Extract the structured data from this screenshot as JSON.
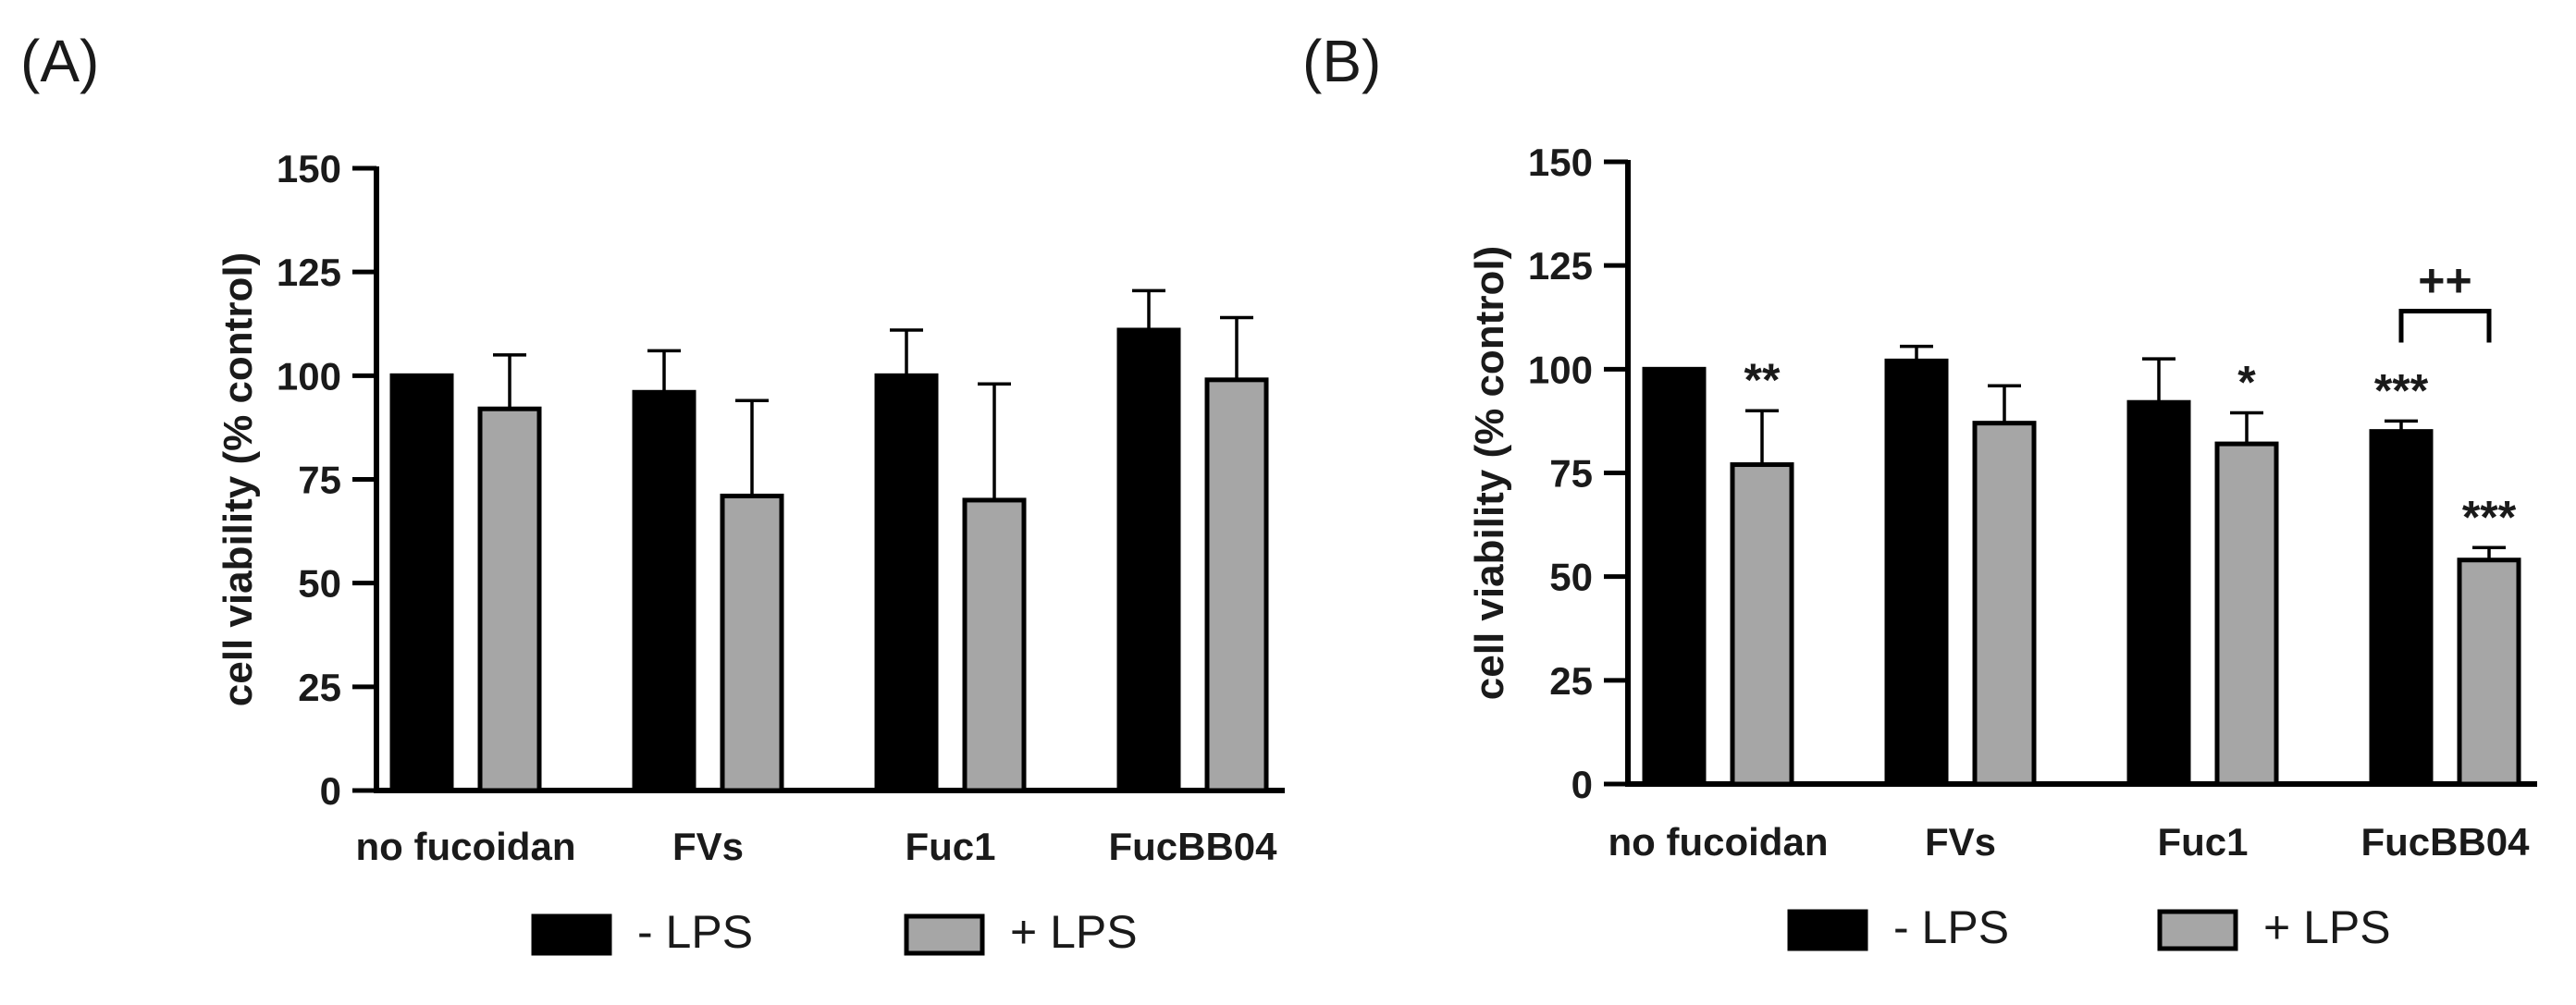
{
  "colors": {
    "minus_lps": "#000000",
    "plus_lps": "#a6a6a6",
    "axis": "#000000"
  },
  "chart_data": [
    {
      "panel_label": "(A)",
      "type": "bar",
      "categories": [
        "no fucoidan",
        "FVs",
        "Fuc1",
        "FucBB04"
      ],
      "ylabel": "cell viability (% control)",
      "xlabel": "",
      "ylim": [
        0,
        150
      ],
      "yticks": [
        0,
        25,
        50,
        75,
        100,
        125,
        150
      ],
      "ytick_labels": [
        "0",
        "25",
        "50",
        "75",
        "100",
        "125",
        "150"
      ],
      "grid": false,
      "legend_position": "bottom",
      "series": [
        {
          "name": "- LPS",
          "color": "#000000",
          "values": [
            100,
            96,
            100,
            111
          ],
          "error": [
            0,
            10,
            11,
            9.5
          ],
          "annotations": [
            "",
            "",
            "",
            ""
          ]
        },
        {
          "name": "+ LPS",
          "color": "#a6a6a6",
          "values": [
            92,
            71,
            70,
            99
          ],
          "error": [
            13,
            23,
            28,
            15
          ],
          "annotations": [
            "",
            "",
            "",
            ""
          ]
        }
      ],
      "brackets": []
    },
    {
      "panel_label": "(B)",
      "type": "bar",
      "categories": [
        "no fucoidan",
        "FVs",
        "Fuc1",
        "FucBB04"
      ],
      "ylabel": "cell viability (% control)",
      "xlabel": "",
      "ylim": [
        0,
        150
      ],
      "yticks": [
        0,
        25,
        50,
        75,
        100,
        125,
        150
      ],
      "ytick_labels": [
        "0",
        "25",
        "50",
        "75",
        "100",
        "125",
        "150"
      ],
      "grid": false,
      "legend_position": "bottom",
      "series": [
        {
          "name": "- LPS",
          "color": "#000000",
          "values": [
            100,
            102,
            92,
            85
          ],
          "error": [
            0,
            3.5,
            10.5,
            2.5
          ],
          "annotations": [
            "",
            "",
            "",
            "***"
          ]
        },
        {
          "name": "+ LPS",
          "color": "#a6a6a6",
          "values": [
            77,
            87,
            82,
            54
          ],
          "error": [
            13,
            9,
            7.5,
            3
          ],
          "annotations": [
            "**",
            "",
            "*",
            "***"
          ]
        }
      ],
      "brackets": [
        {
          "category": "FucBB04",
          "y": 114,
          "label": "++"
        }
      ]
    }
  ]
}
